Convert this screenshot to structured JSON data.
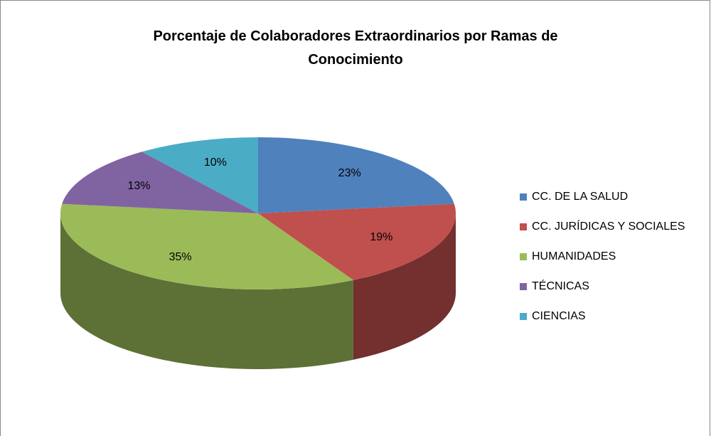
{
  "chart_data": {
    "type": "pie",
    "title": "Porcentaje de Colaboradores Extraordinarios por Ramas de Conocimiento",
    "categories": [
      "CC. DE LA SALUD",
      "CC. JURÍDICAS Y SOCIALES",
      "HUMANIDADES",
      "TÉCNICAS",
      "CIENCIAS"
    ],
    "values": [
      23,
      19,
      35,
      13,
      10
    ],
    "value_labels": [
      "23%",
      "19%",
      "35%",
      "13%",
      "10%"
    ],
    "colors": [
      "#4f81bd",
      "#c0504d",
      "#9bbb59",
      "#8064a2",
      "#4bacc6"
    ],
    "legend": "right"
  }
}
